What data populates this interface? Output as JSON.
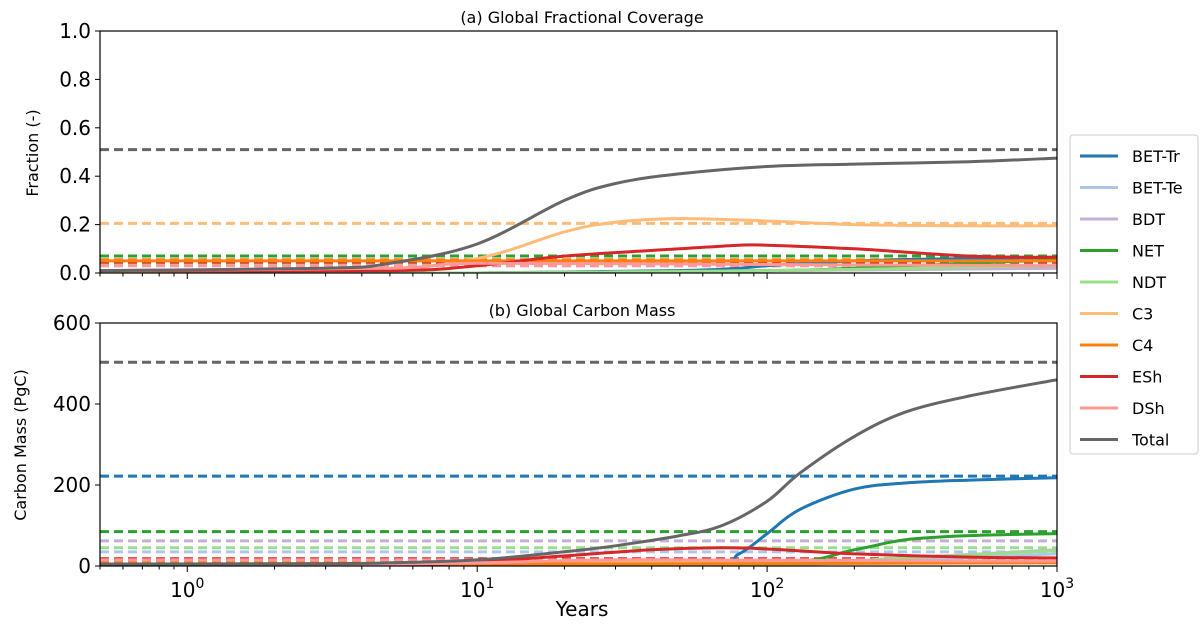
{
  "chart_data": [
    {
      "type": "line",
      "title": "(a) Global Fractional Coverage",
      "xlabel": "",
      "ylabel": "Fraction  (-)",
      "xscale": "log",
      "xlim": [
        0.5,
        1000
      ],
      "ylim": [
        0,
        1.0
      ],
      "yticks": [
        "0.0",
        "0.2",
        "0.4",
        "0.6",
        "0.8",
        "1.0"
      ],
      "series": [
        {
          "name": "BET-Tr",
          "color": "#1f77b4",
          "x": [
            0.5,
            1,
            10,
            50,
            80,
            100,
            200,
            500,
            1000
          ],
          "y": [
            0.0,
            0.0,
            0.0,
            0.01,
            0.02,
            0.03,
            0.05,
            0.06,
            0.065
          ],
          "reference": 0.07
        },
        {
          "name": "BET-Te",
          "color": "#aec7e8",
          "x": [
            0.5,
            10,
            100,
            1000
          ],
          "y": [
            0.0,
            0.0,
            0.01,
            0.02
          ],
          "reference": 0.03
        },
        {
          "name": "BDT",
          "color": "#c5b0d5",
          "x": [
            0.5,
            10,
            100,
            1000
          ],
          "y": [
            0.0,
            0.0,
            0.01,
            0.02
          ],
          "reference": 0.045
        },
        {
          "name": "NET",
          "color": "#2ca02c",
          "x": [
            0.5,
            10,
            100,
            200,
            500,
            1000
          ],
          "y": [
            0.0,
            0.0,
            0.01,
            0.02,
            0.04,
            0.055
          ],
          "reference": 0.07
        },
        {
          "name": "NDT",
          "color": "#98df8a",
          "x": [
            0.5,
            10,
            100,
            1000
          ],
          "y": [
            0.0,
            0.0,
            0.01,
            0.03
          ],
          "reference": 0.04
        },
        {
          "name": "C3",
          "color": "#ffbb78",
          "x": [
            0.5,
            4,
            10,
            20,
            30,
            50,
            100,
            200,
            500,
            1000
          ],
          "y": [
            0.01,
            0.01,
            0.06,
            0.17,
            0.21,
            0.225,
            0.215,
            0.2,
            0.195,
            0.195
          ],
          "reference": 0.205
        },
        {
          "name": "C4",
          "color": "#ff7f0e",
          "x": [
            0.5,
            1,
            10,
            100,
            1000
          ],
          "y": [
            0.05,
            0.05,
            0.05,
            0.05,
            0.05
          ],
          "reference": 0.055
        },
        {
          "name": "ESh",
          "color": "#d62728",
          "x": [
            0.5,
            5,
            10,
            20,
            50,
            80,
            100,
            200,
            500,
            1000
          ],
          "y": [
            0.01,
            0.01,
            0.03,
            0.07,
            0.1,
            0.115,
            0.115,
            0.1,
            0.07,
            0.065
          ],
          "reference": 0.045
        },
        {
          "name": "DSh",
          "color": "#ff9896",
          "x": [
            0.5,
            5,
            10,
            100,
            1000
          ],
          "y": [
            0.01,
            0.02,
            0.04,
            0.035,
            0.03
          ],
          "reference": 0.03
        },
        {
          "name": "Total",
          "color": "#666666",
          "x": [
            0.5,
            3,
            5,
            10,
            20,
            30,
            50,
            100,
            200,
            500,
            1000
          ],
          "y": [
            0.01,
            0.02,
            0.04,
            0.12,
            0.3,
            0.37,
            0.41,
            0.44,
            0.45,
            0.46,
            0.475
          ],
          "reference": 0.51
        }
      ]
    },
    {
      "type": "line",
      "title": "(b) Global Carbon Mass",
      "xlabel": "Years",
      "ylabel": "Carbon Mass (PgC)",
      "xscale": "log",
      "xlim": [
        0.5,
        1000
      ],
      "ylim": [
        0,
        600
      ],
      "yticks": [
        "0",
        "200",
        "400",
        "600"
      ],
      "xticks": [
        {
          "value": 1,
          "base": "10",
          "exp": "0"
        },
        {
          "value": 10,
          "base": "10",
          "exp": "1"
        },
        {
          "value": 100,
          "base": "10",
          "exp": "2"
        },
        {
          "value": 1000,
          "base": "10",
          "exp": "3"
        }
      ],
      "series": [
        {
          "name": "BET-Tr",
          "color": "#1f77b4",
          "x": [
            0.5,
            10,
            60,
            80,
            100,
            130,
            200,
            300,
            500,
            1000
          ],
          "y": [
            0,
            0,
            5,
            30,
            80,
            140,
            190,
            205,
            212,
            218
          ],
          "reference": 222
        },
        {
          "name": "BET-Te",
          "color": "#aec7e8",
          "x": [
            0.5,
            10,
            100,
            300,
            1000
          ],
          "y": [
            0,
            0,
            2,
            15,
            30
          ],
          "reference": 35
        },
        {
          "name": "BDT",
          "color": "#c5b0d5",
          "x": [
            0.5,
            10,
            100,
            300,
            1000
          ],
          "y": [
            0,
            0,
            3,
            20,
            40
          ],
          "reference": 62
        },
        {
          "name": "NET",
          "color": "#2ca02c",
          "x": [
            0.5,
            10,
            100,
            200,
            300,
            500,
            1000
          ],
          "y": [
            0,
            0,
            5,
            40,
            65,
            75,
            80
          ],
          "reference": 85
        },
        {
          "name": "NDT",
          "color": "#98df8a",
          "x": [
            0.5,
            10,
            100,
            300,
            1000
          ],
          "y": [
            0,
            0,
            3,
            20,
            38
          ],
          "reference": 45
        },
        {
          "name": "C3",
          "color": "#ffbb78",
          "x": [
            0.5,
            10,
            30,
            100,
            1000
          ],
          "y": [
            2,
            4,
            10,
            12,
            12
          ],
          "reference": 12
        },
        {
          "name": "C4",
          "color": "#ff7f0e",
          "x": [
            0.5,
            10,
            100,
            1000
          ],
          "y": [
            5,
            5,
            6,
            8
          ],
          "reference": 8
        },
        {
          "name": "ESh",
          "color": "#d62728",
          "x": [
            0.5,
            5,
            10,
            20,
            40,
            70,
            100,
            200,
            500,
            1000
          ],
          "y": [
            2,
            3,
            10,
            25,
            40,
            45,
            42,
            30,
            22,
            20
          ],
          "reference": 18
        },
        {
          "name": "DSh",
          "color": "#ff9896",
          "x": [
            0.5,
            5,
            10,
            30,
            100,
            1000
          ],
          "y": [
            3,
            5,
            8,
            15,
            14,
            12
          ],
          "reference": 15
        },
        {
          "name": "Total",
          "color": "#666666",
          "x": [
            0.5,
            3,
            5,
            10,
            20,
            30,
            50,
            70,
            100,
            130,
            200,
            300,
            500,
            1000
          ],
          "y": [
            5,
            6,
            8,
            15,
            35,
            50,
            75,
            100,
            160,
            230,
            320,
            380,
            420,
            460
          ],
          "reference": 503
        }
      ]
    }
  ],
  "legend": {
    "placement": "right",
    "entries": [
      {
        "name": "BET-Tr",
        "color": "#1f77b4"
      },
      {
        "name": "BET-Te",
        "color": "#aec7e8"
      },
      {
        "name": "BDT",
        "color": "#c5b0d5"
      },
      {
        "name": "NET",
        "color": "#2ca02c"
      },
      {
        "name": "NDT",
        "color": "#98df8a"
      },
      {
        "name": "C3",
        "color": "#ffbb78"
      },
      {
        "name": "C4",
        "color": "#ff7f0e"
      },
      {
        "name": "ESh",
        "color": "#d62728"
      },
      {
        "name": "DSh",
        "color": "#ff9896"
      },
      {
        "name": "Total",
        "color": "#666666"
      }
    ]
  }
}
